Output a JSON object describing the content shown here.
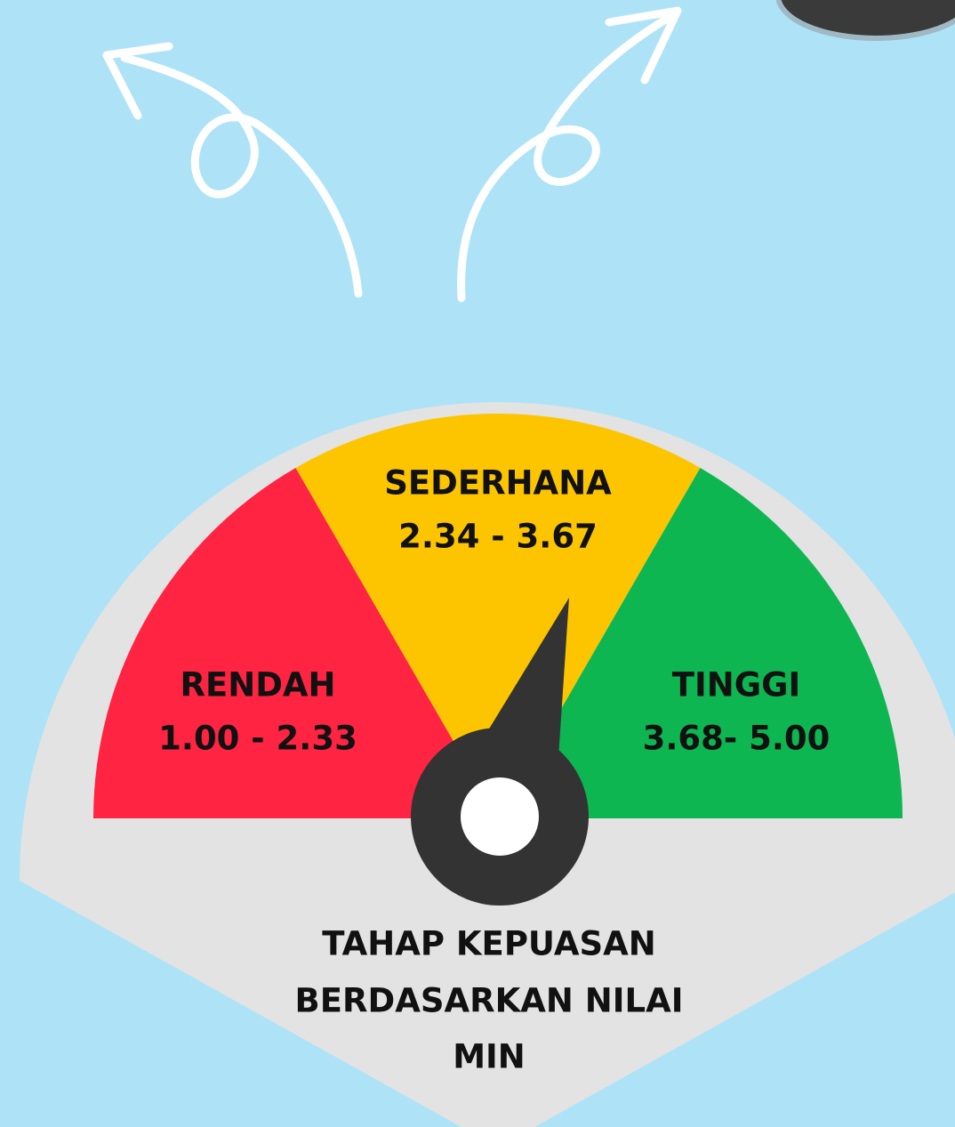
{
  "gauge": {
    "segments": [
      {
        "label": "RENDAH",
        "range": "1.00 - 2.33",
        "color": "#fe2442"
      },
      {
        "label": "SEDERHANA",
        "range": "2.34 - 3.67",
        "color": "#fdc500"
      },
      {
        "label": "TINGGI",
        "range": "3.68- 5.00",
        "color": "#0db651"
      }
    ]
  },
  "caption": [
    "TAHAP KEPUASAN",
    "BERDASARKAN NILAI",
    "MIN"
  ]
}
